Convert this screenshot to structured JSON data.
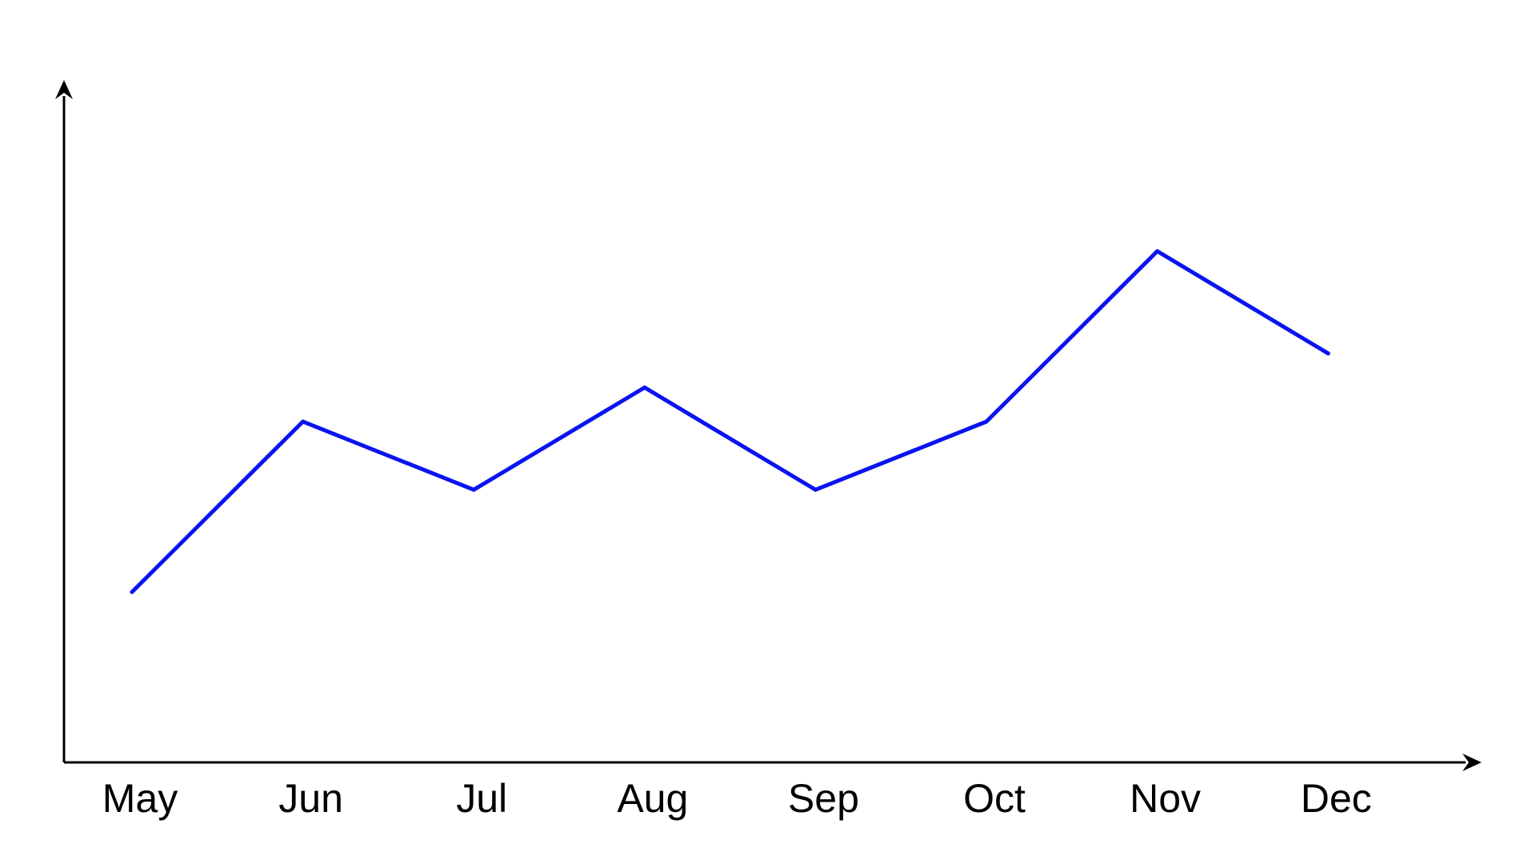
{
  "chart_data": {
    "type": "line",
    "categories": [
      "May",
      "Jun",
      "Jul",
      "Aug",
      "Sep",
      "Oct",
      "Nov",
      "Dec"
    ],
    "series": [
      {
        "values": [
          25,
          50,
          40,
          55,
          40,
          50,
          75,
          60
        ]
      }
    ],
    "ylim": [
      0,
      100
    ],
    "grid": false,
    "legend": "none",
    "colors": {
      "line": "#0a14f0",
      "axis": "#000000",
      "text": "#000000",
      "background": "#ffffff"
    }
  }
}
